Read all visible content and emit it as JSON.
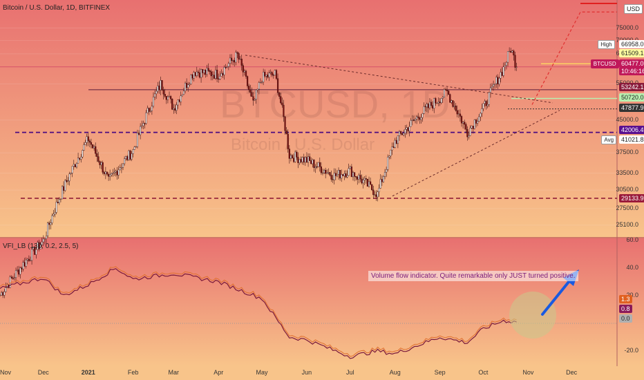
{
  "header": {
    "title": "Bitcoin / U.S. Dollar, 1D, BITFINEX"
  },
  "watermark": {
    "symbol": "BTCUSD, 1D",
    "name": "Bitcoin / U.S. Dollar"
  },
  "indicator": {
    "title": "VFI_LB (130, 0.2, 2.5, 5)",
    "annotation": "Volume flow indicator. Quite remarkable only JUST turned positive.",
    "y_ticks": [
      "60.0",
      "40.0",
      "20.0",
      "-20.0"
    ],
    "tags": [
      {
        "label": "1.3",
        "bg": "#e06020",
        "fg": "#ffffff"
      },
      {
        "label": "0.8",
        "bg": "#8a1a5a",
        "fg": "#ffffff"
      },
      {
        "label": "0.0",
        "bg": "#b0b0b0",
        "fg": "#222222"
      }
    ]
  },
  "price_axis": {
    "currency": "USD",
    "ticks": [
      "75000.0",
      "70000.0",
      "65000.0",
      "55000.0",
      "45000.0",
      "37500.0",
      "33500.0",
      "30500.0",
      "27500.0",
      "25100.0"
    ],
    "tags": [
      {
        "label": "66958.0",
        "flag": "High",
        "bg": "#ffffff",
        "fg": "#222222"
      },
      {
        "label": "61509.1",
        "bg": "#ffffa0",
        "fg": "#222222"
      },
      {
        "label": "60477.0",
        "flag": "BTCUSD",
        "bg": "#c0185a",
        "fg": "#ffffff"
      },
      {
        "label": "10:46:16",
        "bg": "#c0185a",
        "fg": "#ffffff"
      },
      {
        "label": "53242.1",
        "bg": "#8a1a3a",
        "fg": "#ffffff"
      },
      {
        "label": "50720.0",
        "bg": "#b8f0b0",
        "fg": "#222222"
      },
      {
        "label": "47877.9",
        "bg": "#333333",
        "fg": "#ffffff"
      },
      {
        "label": "42006.4",
        "bg": "#5a1090",
        "fg": "#ffffff"
      },
      {
        "label": "41021.8",
        "flag": "Avg",
        "bg": "#ffffff",
        "fg": "#222222"
      },
      {
        "label": "29133.9",
        "bg": "#9a1a3a",
        "fg": "#ffffff"
      }
    ]
  },
  "x_axis": [
    "Nov",
    "Dec",
    "2021",
    "Feb",
    "Mar",
    "Apr",
    "May",
    "Jun",
    "Jul",
    "Aug",
    "Sep",
    "Oct",
    "Nov",
    "Dec"
  ],
  "chart_data": {
    "type": "candlestick",
    "price_series": [
      {
        "date": "2020-11",
        "close": 17000
      },
      {
        "date": "2020-12",
        "close": 23000
      },
      {
        "date": "2021-01",
        "close": 40500
      },
      {
        "date": "2021-01-15",
        "close": 32000
      },
      {
        "date": "2021-02",
        "close": 38000
      },
      {
        "date": "2021-02-20",
        "close": 55000
      },
      {
        "date": "2021-03",
        "close": 48000
      },
      {
        "date": "2021-03-15",
        "close": 59000
      },
      {
        "date": "2021-04",
        "close": 58000
      },
      {
        "date": "2021-04-14",
        "close": 64500
      },
      {
        "date": "2021-04-25",
        "close": 49000
      },
      {
        "date": "2021-05",
        "close": 57000
      },
      {
        "date": "2021-05-10",
        "close": 58000
      },
      {
        "date": "2021-05-20",
        "close": 37000
      },
      {
        "date": "2021-06",
        "close": 36000
      },
      {
        "date": "2021-06-20",
        "close": 33000
      },
      {
        "date": "2021-07-01",
        "close": 34000
      },
      {
        "date": "2021-07-20",
        "close": 29800
      },
      {
        "date": "2021-08",
        "close": 40000
      },
      {
        "date": "2021-08-20",
        "close": 47000
      },
      {
        "date": "2021-09-06",
        "close": 52500
      },
      {
        "date": "2021-09-20",
        "close": 42000
      },
      {
        "date": "2021-10",
        "close": 48000
      },
      {
        "date": "2021-10-15",
        "close": 60000
      },
      {
        "date": "2021-10-20",
        "close": 66958
      },
      {
        "date": "2021-10-24",
        "close": 60477
      }
    ],
    "levels": [
      53242.1,
      50720.0,
      47877.9,
      42006.4,
      29133.9,
      61509.1
    ],
    "vfi_series": [
      {
        "date": "2020-11",
        "value": 25
      },
      {
        "date": "2020-12",
        "value": 33
      },
      {
        "date": "2020-12-15",
        "value": 20
      },
      {
        "date": "2021-01",
        "value": 28
      },
      {
        "date": "2021-01-20",
        "value": 40
      },
      {
        "date": "2021-02",
        "value": 32
      },
      {
        "date": "2021-03",
        "value": 36
      },
      {
        "date": "2021-04",
        "value": 30
      },
      {
        "date": "2021-05",
        "value": 18
      },
      {
        "date": "2021-05-20",
        "value": -10
      },
      {
        "date": "2021-06",
        "value": -12
      },
      {
        "date": "2021-07",
        "value": -24
      },
      {
        "date": "2021-07-20",
        "value": -20
      },
      {
        "date": "2021-08",
        "value": -22
      },
      {
        "date": "2021-09",
        "value": -10
      },
      {
        "date": "2021-09-20",
        "value": -14
      },
      {
        "date": "2021-10",
        "value": -4
      },
      {
        "date": "2021-10-15",
        "value": 2
      },
      {
        "date": "2021-10-24",
        "value": 1
      }
    ]
  }
}
